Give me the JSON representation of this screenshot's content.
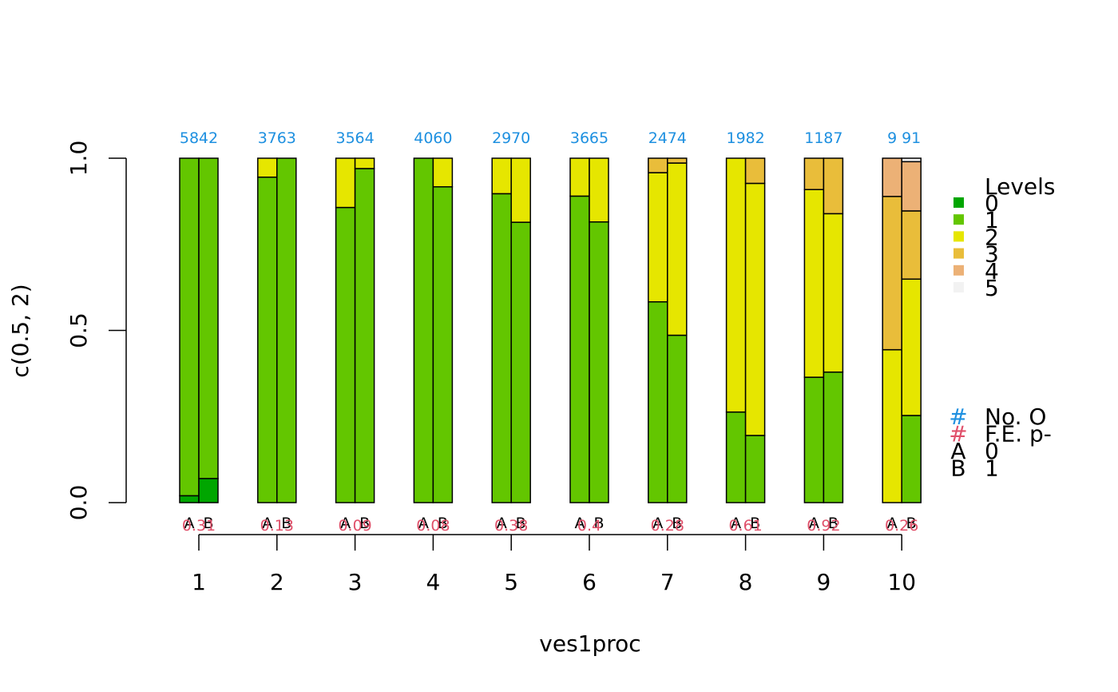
{
  "chart_data": {
    "type": "bar",
    "subtype": "stacked-proportion-paired",
    "xlabel": "ves1proc",
    "ylabel": "c(0.5, 2)",
    "ylim": [
      0,
      1
    ],
    "yticks": [
      "0.0",
      "0.5",
      "1.0"
    ],
    "categories": [
      "1",
      "2",
      "3",
      "4",
      "5",
      "6",
      "7",
      "8",
      "9",
      "10"
    ],
    "group_labels": [
      "A",
      "B"
    ],
    "levels": [
      "0",
      "1",
      "2",
      "3",
      "4",
      "5"
    ],
    "level_colors": [
      "#00A600",
      "#63C600",
      "#E6E600",
      "#E9BD3A",
      "#ECB176",
      "#F2F2F2"
    ],
    "groups": [
      {
        "category": "1",
        "A": {
          "count": "58",
          "props": [
            0.02,
            0.98,
            0,
            0,
            0,
            0
          ]
        },
        "B": {
          "count": "42",
          "props": [
            0.07,
            0.93,
            0,
            0,
            0,
            0
          ]
        },
        "pvalue": "0.31"
      },
      {
        "category": "2",
        "A": {
          "count": "37",
          "props": [
            0,
            0.945,
            0.055,
            0,
            0,
            0
          ]
        },
        "B": {
          "count": "63",
          "props": [
            0,
            1.0,
            0,
            0,
            0,
            0
          ]
        },
        "pvalue": "0.13"
      },
      {
        "category": "3",
        "A": {
          "count": "35",
          "props": [
            0,
            0.857,
            0.143,
            0,
            0,
            0
          ]
        },
        "B": {
          "count": "64",
          "props": [
            0,
            0.97,
            0.03,
            0,
            0,
            0
          ]
        },
        "pvalue": "0.09"
      },
      {
        "category": "4",
        "A": {
          "count": "40",
          "props": [
            0,
            1.0,
            0,
            0,
            0,
            0
          ]
        },
        "B": {
          "count": "60",
          "props": [
            0,
            0.917,
            0.083,
            0,
            0,
            0
          ]
        },
        "pvalue": "0.08"
      },
      {
        "category": "5",
        "A": {
          "count": "29",
          "props": [
            0,
            0.897,
            0.103,
            0,
            0,
            0
          ]
        },
        "B": {
          "count": "70",
          "props": [
            0,
            0.814,
            0.186,
            0,
            0,
            0
          ]
        },
        "pvalue": "0.38"
      },
      {
        "category": "6",
        "A": {
          "count": "36",
          "props": [
            0,
            0.89,
            0.11,
            0,
            0,
            0
          ]
        },
        "B": {
          "count": "65",
          "props": [
            0,
            0.815,
            0.185,
            0,
            0,
            0
          ]
        },
        "pvalue": "0.4"
      },
      {
        "category": "7",
        "A": {
          "count": "24",
          "props": [
            0,
            0.583,
            0.375,
            0.042,
            0,
            0
          ]
        },
        "B": {
          "count": "74",
          "props": [
            0,
            0.486,
            0.5,
            0.014,
            0,
            0
          ]
        },
        "pvalue": "0.28"
      },
      {
        "category": "8",
        "A": {
          "count": "19",
          "props": [
            0,
            0.263,
            0.737,
            0,
            0,
            0
          ]
        },
        "B": {
          "count": "82",
          "props": [
            0,
            0.195,
            0.732,
            0.073,
            0,
            0
          ]
        },
        "pvalue": "0.61"
      },
      {
        "category": "9",
        "A": {
          "count": "11",
          "props": [
            0,
            0.364,
            0.545,
            0.091,
            0,
            0
          ]
        },
        "B": {
          "count": "87",
          "props": [
            0,
            0.379,
            0.46,
            0.161,
            0,
            0
          ]
        },
        "pvalue": "0.92"
      },
      {
        "category": "10",
        "A": {
          "count": "9",
          "props": [
            0,
            0,
            0.444,
            0.445,
            0.111,
            0
          ]
        },
        "B": {
          "count": "91",
          "props": [
            0,
            0.253,
            0.396,
            0.198,
            0.143,
            0.01
          ]
        },
        "pvalue": "0.26"
      }
    ],
    "legend": {
      "title": "Levels",
      "placement": "right",
      "extra": [
        {
          "symbol": "#",
          "color": "#1E90E0",
          "text": "No. O"
        },
        {
          "symbol": "#",
          "color": "#E0506A",
          "text": "F.E. p-"
        },
        {
          "symbol": "A",
          "color": "#000000",
          "text": "0"
        },
        {
          "symbol": "B",
          "color": "#000000",
          "text": "1"
        }
      ]
    }
  }
}
